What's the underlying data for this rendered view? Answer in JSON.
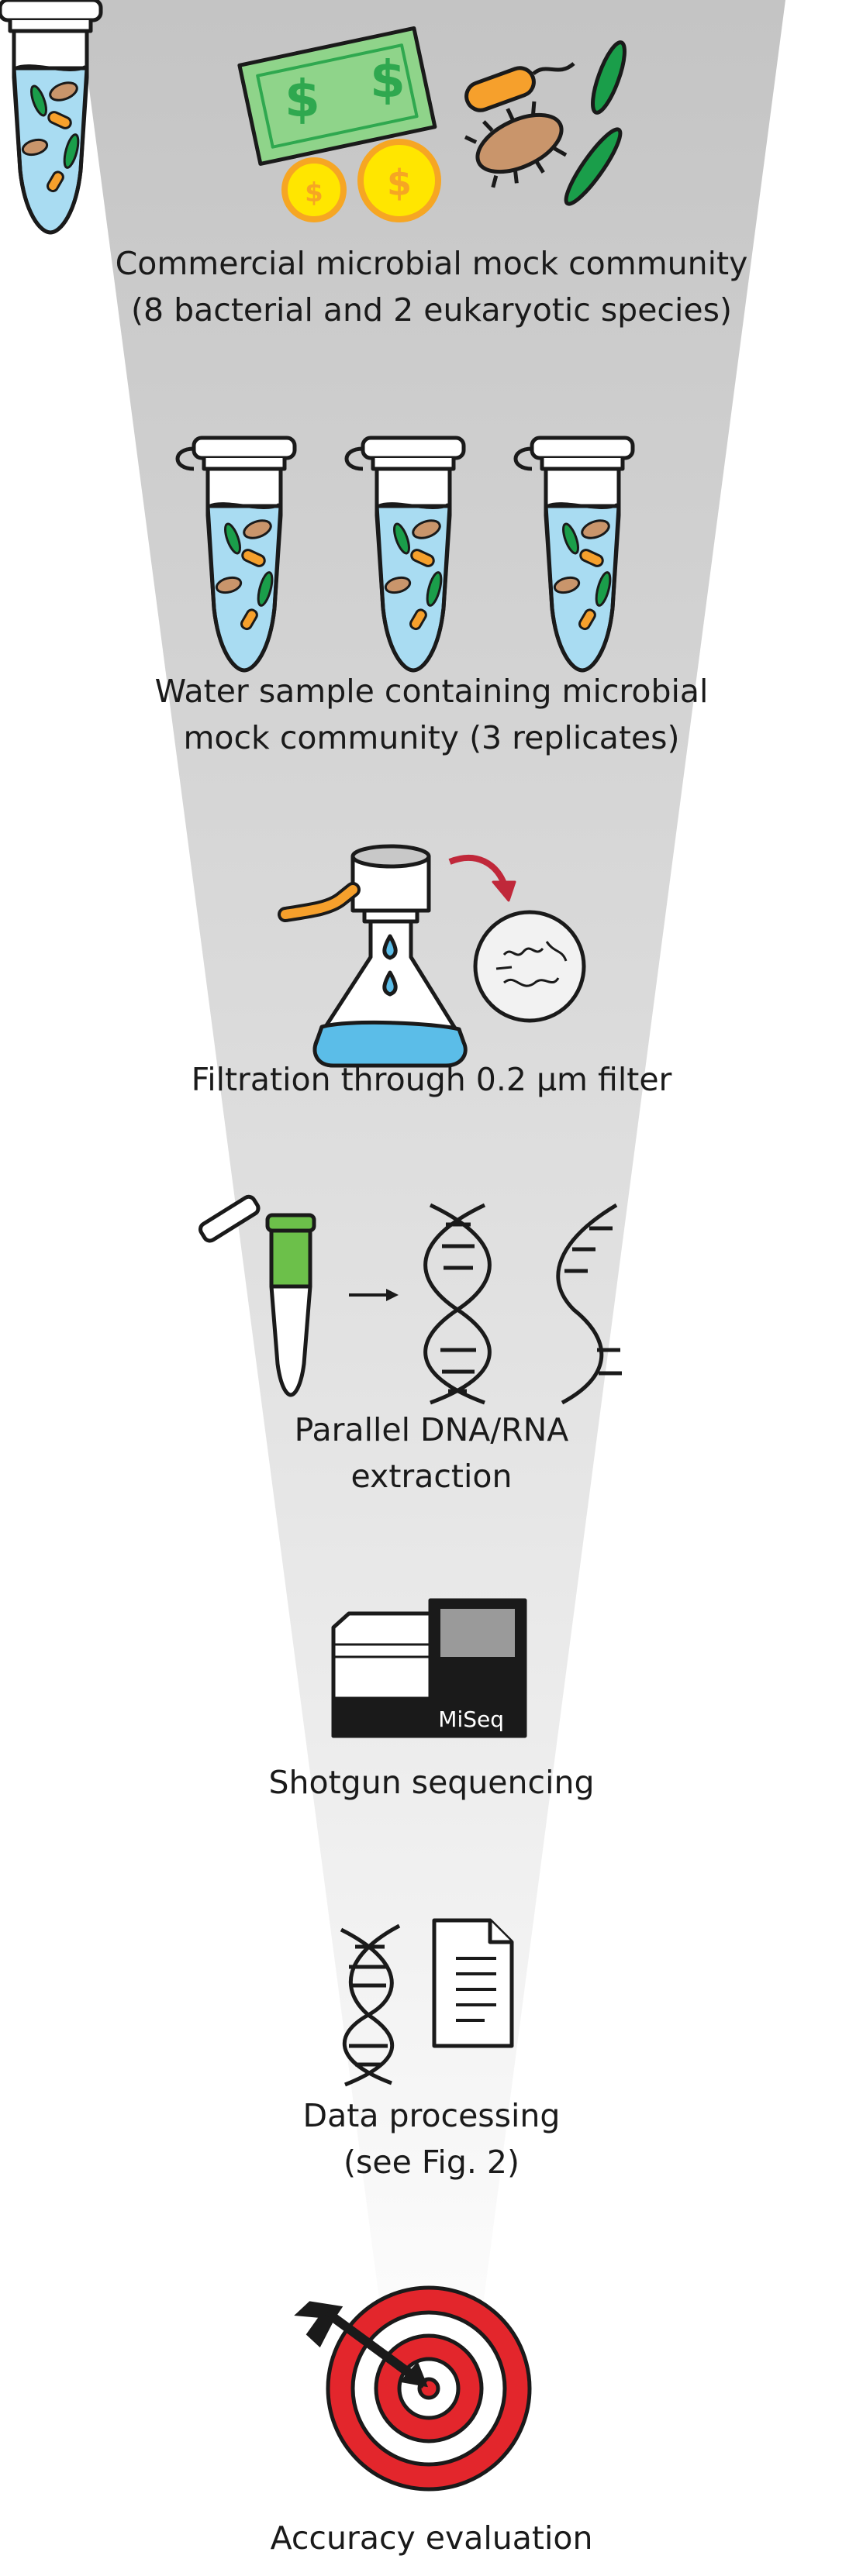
{
  "steps": [
    {
      "id": "mock-community",
      "icon": "money-and-microbes-icon",
      "lines": [
        "Commercial microbial mock community",
        "(8 bacterial and 2 eukaryotic species)"
      ]
    },
    {
      "id": "water-sample",
      "icon": "sample-tubes-icon",
      "lines": [
        "Water sample containing microbial",
        "mock community (3 replicates)"
      ]
    },
    {
      "id": "filtration",
      "icon": "filtration-flask-icon",
      "lines": [
        "Filtration through 0.2 µm filter"
      ]
    },
    {
      "id": "extraction",
      "icon": "dna-extraction-icon",
      "lines": [
        "Parallel DNA/RNA",
        "extraction"
      ]
    },
    {
      "id": "sequencing",
      "icon": "sequencer-icon",
      "lines": [
        "Shotgun sequencing"
      ],
      "device_label": "MiSeq"
    },
    {
      "id": "processing",
      "icon": "dna-document-icon",
      "lines": [
        "Data processing",
        "(see Fig. 2)"
      ]
    },
    {
      "id": "evaluation",
      "icon": "target-icon",
      "lines": [
        "Accuracy evaluation"
      ]
    }
  ],
  "colors": {
    "funnel_top": "#c4c4c4",
    "funnel_bottom": "#ffffff",
    "money_green": "#8fd48a",
    "dollar_green": "#2fa84f",
    "coin_yellow": "#ffe600",
    "coin_orange": "#f6a623",
    "microbe_orange": "#f6a02c",
    "microbe_brown": "#c9956b",
    "microbe_green": "#1a9e4a",
    "liquid_blue": "#a9dcf2",
    "filter_blue": "#5bbde8",
    "arrow_red": "#c0283a",
    "extract_green": "#6cc04a",
    "target_red": "#e3262c"
  }
}
